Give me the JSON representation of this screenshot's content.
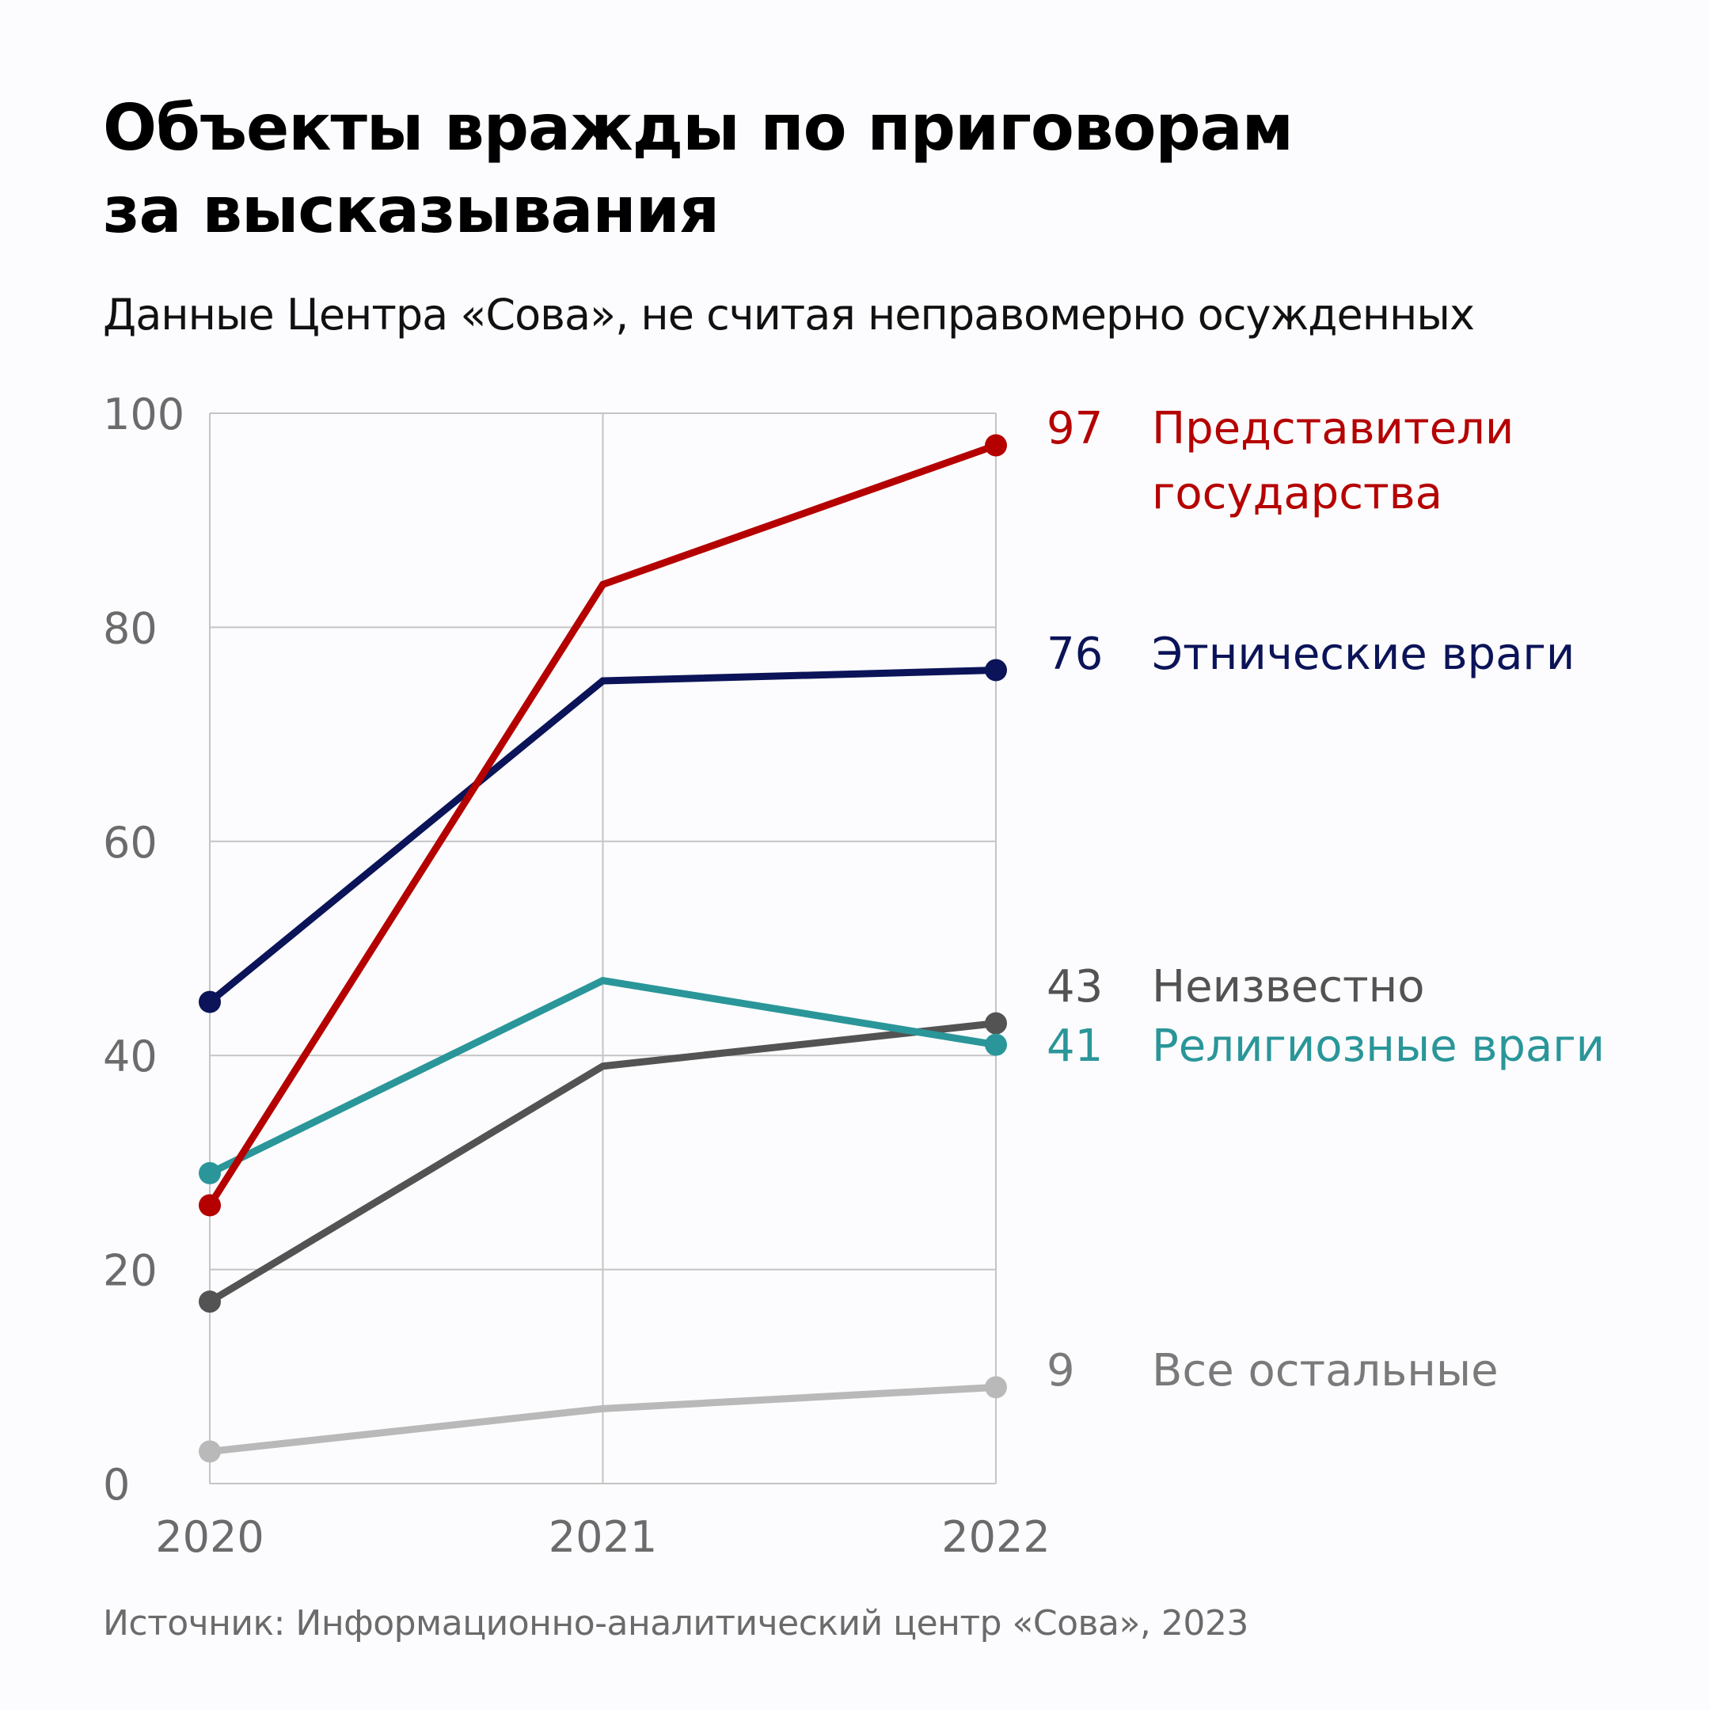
{
  "chart_data": {
    "type": "line",
    "title": "Объекты вражды по приговорам за высказывания",
    "title_lines": [
      "Объекты вражды по приговорам",
      "за высказывания"
    ],
    "subtitle": "Данные Центра «Сова», не считая неправомерно осужденных",
    "source": "Источник: Информационно-аналитический центр «Сова», 2023",
    "x": [
      "2020",
      "2021",
      "2022"
    ],
    "xlabel": "",
    "ylabel": "",
    "ylim": [
      0,
      100
    ],
    "yticks": [
      0,
      20,
      40,
      60,
      80,
      100
    ],
    "grid": true,
    "legend": "right-end labels",
    "series": [
      {
        "name": "Представители государства",
        "label_lines": [
          "Представители",
          "государства"
        ],
        "values": [
          26,
          84,
          97
        ],
        "end_label": "97",
        "color": "#b50000"
      },
      {
        "name": "Этнические враги",
        "label_lines": [
          "Этнические враги"
        ],
        "values": [
          45,
          75,
          76
        ],
        "end_label": "76",
        "color": "#0b1458"
      },
      {
        "name": "Неизвестно",
        "label_lines": [
          "Неизвестно"
        ],
        "values": [
          17,
          39,
          43
        ],
        "end_label": "43",
        "color": "#535353"
      },
      {
        "name": "Религиозные враги",
        "label_lines": [
          "Религиозные враги"
        ],
        "values": [
          29,
          47,
          41
        ],
        "end_label": "41",
        "color": "#2a9699"
      },
      {
        "name": "Все остальные",
        "label_lines": [
          "Все остальные"
        ],
        "values": [
          3,
          7,
          9
        ],
        "end_label": "9",
        "color": "#b9b9b9"
      }
    ],
    "label_colors": {
      "Все остальные": "#7a7a7a"
    }
  }
}
